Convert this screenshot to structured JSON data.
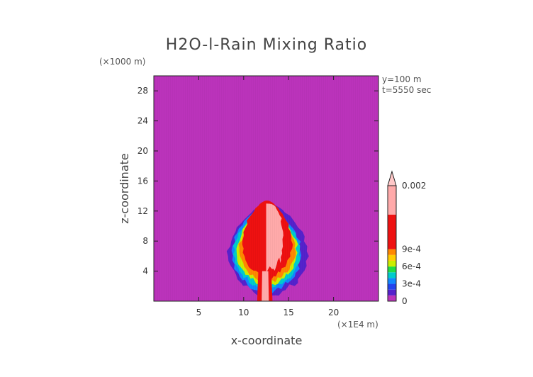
{
  "chart_data": {
    "type": "heatmap",
    "title": "H2O-l-Rain Mixing Ratio",
    "xlabel": "x-coordinate",
    "ylabel": "z-coordinate",
    "x_unit": "(×1E4 m)",
    "y_unit": "(×1000 m)",
    "annotations": [
      "y=100 m",
      "t=5550 sec"
    ],
    "xlim": [
      0,
      25
    ],
    "ylim": [
      0,
      30
    ],
    "x_ticks": [
      5,
      10,
      15,
      20
    ],
    "y_ticks": [
      4,
      8,
      12,
      16,
      20,
      24,
      28
    ],
    "background_color": "#bb33bb",
    "colorbar": {
      "min": 0,
      "max": 0.002,
      "tick_labels": [
        "0",
        "3e-4",
        "6e-4",
        "9e-4",
        "0.002"
      ],
      "tick_values": [
        0,
        0.0003,
        0.0006,
        0.0009,
        0.002
      ],
      "levels": [
        {
          "from": 0.0,
          "to": 0.0001,
          "color": "#bb33bb"
        },
        {
          "from": 0.0001,
          "to": 0.0002,
          "color": "#5522cc"
        },
        {
          "from": 0.0002,
          "to": 0.0003,
          "color": "#2244ee"
        },
        {
          "from": 0.0003,
          "to": 0.0004,
          "color": "#1188ff"
        },
        {
          "from": 0.0004,
          "to": 0.0005,
          "color": "#00cccc"
        },
        {
          "from": 0.0005,
          "to": 0.0006,
          "color": "#22dd44"
        },
        {
          "from": 0.0006,
          "to": 0.0007,
          "color": "#ccee00"
        },
        {
          "from": 0.0007,
          "to": 0.0008,
          "color": "#ffcc00"
        },
        {
          "from": 0.0008,
          "to": 0.0009,
          "color": "#ff8800"
        },
        {
          "from": 0.0009,
          "to": 0.0015,
          "color": "#ee1111"
        },
        {
          "from": 0.0015,
          "to": 0.002,
          "color": "#ffaaaa"
        }
      ],
      "extend_max": true,
      "extend_color": "#ffc8c8"
    },
    "field_regions": [
      {
        "level": 0.0001,
        "color": "#5522cc",
        "shape": "cloud",
        "x_range": [
          8.3,
          17.2
        ],
        "z_range": [
          0.3,
          13.0
        ]
      },
      {
        "level": 0.0003,
        "color": "#1188ff",
        "shape": "cloud",
        "x_range": [
          8.6,
          16.4
        ],
        "z_range": [
          0.8,
          12.6
        ]
      },
      {
        "level": 0.0004,
        "color": "#00cccc",
        "shape": "cloud",
        "x_range": [
          8.9,
          16.2
        ],
        "z_range": [
          1.2,
          12.4
        ]
      },
      {
        "level": 0.0006,
        "color": "#ccee00",
        "shape": "cloud",
        "x_range": [
          9.2,
          16.0
        ],
        "z_range": [
          1.8,
          12.2
        ]
      },
      {
        "level": 0.0008,
        "color": "#ff8800",
        "shape": "cloud",
        "x_range": [
          9.5,
          15.8
        ],
        "z_range": [
          2.2,
          12.0
        ]
      },
      {
        "level": 0.0009,
        "color": "#ee1111",
        "shape": "cloud",
        "x_range": [
          9.8,
          15.4
        ],
        "z_range": [
          2.8,
          13.4
        ]
      },
      {
        "level": 0.0015,
        "color": "#ffaaaa",
        "shape": "core",
        "x_range": [
          10.6,
          14.4
        ],
        "z_range": [
          3.5,
          13.0
        ]
      },
      {
        "level": 0.0009,
        "color": "#ee1111",
        "shape": "shaft",
        "x_range": [
          11.5,
          13.2
        ],
        "z_range": [
          0.0,
          4.0
        ]
      },
      {
        "level": 0.0015,
        "color": "#ffaaaa",
        "shape": "shaft",
        "x_range": [
          12.0,
          12.8
        ],
        "z_range": [
          0.0,
          4.0
        ]
      }
    ]
  }
}
